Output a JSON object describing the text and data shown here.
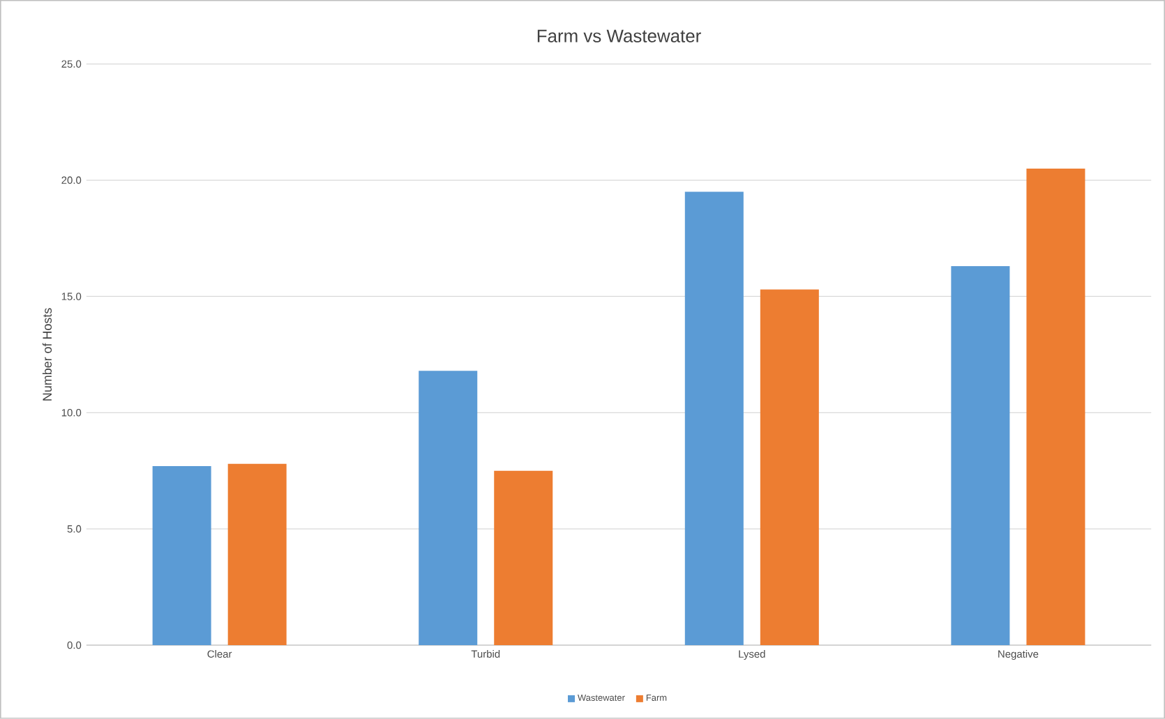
{
  "chart_data": {
    "type": "bar",
    "title": "Farm vs Wastewater",
    "ylabel": "Number of Hosts",
    "categories": [
      "Clear",
      "Turbid",
      "Lysed",
      "Negative"
    ],
    "series": [
      {
        "name": "Wastewater",
        "color": "#5b9bd5",
        "values": [
          7.7,
          11.8,
          19.5,
          16.3
        ]
      },
      {
        "name": "Farm",
        "color": "#ed7d31",
        "values": [
          7.8,
          7.5,
          15.3,
          20.5
        ]
      }
    ],
    "ylim": [
      0,
      25
    ],
    "yticks": [
      {
        "value": 0,
        "label": "0.0"
      },
      {
        "value": 5,
        "label": "5.0"
      },
      {
        "value": 10,
        "label": "10.0"
      },
      {
        "value": 15,
        "label": "15.0"
      },
      {
        "value": 20,
        "label": "20.0"
      },
      {
        "value": 25,
        "label": "25.0"
      }
    ],
    "grid": "y",
    "legend": "bottom"
  }
}
